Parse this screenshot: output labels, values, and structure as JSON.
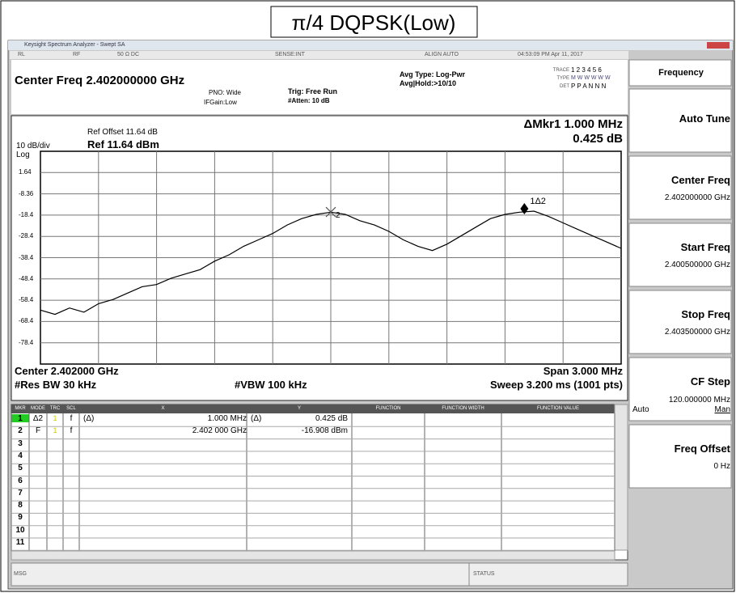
{
  "title": "π/4 DQPSK(Low)",
  "window": {
    "title": "Keysight Spectrum Analyzer - Swept SA"
  },
  "status_bar": [
    "RL",
    "RF",
    "50 Ω DC",
    "SENSE:INT",
    "ALIGN AUTO",
    "04:53:09 PM Apr 11, 2017"
  ],
  "header": {
    "center_freq": "Center Freq 2.402000000 GHz",
    "pno": "PNO: Wide",
    "ifgain": "IFGain:Low",
    "trig": "Trig: Free Run",
    "atten": "#Atten: 10 dB",
    "avg_type": "Avg Type: Log-Pwr",
    "avg_hold": "Avg|Hold:>10/10",
    "trace_label": "TRACE",
    "trace_nums": "1 2 3 4 5 6",
    "type_label": "TYPE",
    "type_vals": "M W W W W W",
    "det_label": "DET",
    "det_vals": "P P A N N N"
  },
  "plot": {
    "ref_offset": "Ref Offset 11.64 dB",
    "scale": "10 dB/div",
    "ref": "Ref 11.64 dBm",
    "log": "Log",
    "marker_readout": "ΔMkr1 1.000 MHz",
    "marker_value": "0.425 dB",
    "ylim": [
      -88.36,
      11.64
    ],
    "yticks": [
      1.64,
      -8.36,
      {
        "value": -18.36,
        "label": "-18.4"
      },
      {
        "value": -28.36,
        "label": "-28.4"
      },
      {
        "value": -38.36,
        "label": "-38.4"
      },
      {
        "value": -48.36,
        "label": "-48.4"
      },
      {
        "value": -58.36,
        "label": "-58.4"
      },
      {
        "value": -68.36,
        "label": "-68.4"
      },
      {
        "value": -78.36,
        "label": "-78.4"
      }
    ],
    "xlim": [
      2.4005,
      2.4035
    ],
    "x_divisions": 10,
    "grid": true,
    "trace_color": "#000000",
    "trace": [
      -63,
      -65,
      -62,
      -64,
      -60,
      -58,
      -55,
      -52,
      -51,
      -48,
      -46,
      -44,
      -40,
      -37,
      -33,
      -30,
      -27,
      -23,
      -20,
      -18,
      -17,
      -18,
      -21,
      -23,
      -26,
      -30,
      -33,
      -35,
      -32,
      -28,
      -24,
      -20,
      -18,
      -17,
      -16.5,
      -19,
      -22,
      -25,
      -28,
      -31,
      -34
    ],
    "markers": [
      {
        "label": "1Δ2",
        "x": 2.403,
        "y": -16.483
      },
      {
        "label": "2",
        "x": 2.402,
        "y": -16.908
      }
    ],
    "footer": {
      "center": "Center 2.402000 GHz",
      "span": "Span 3.000 MHz",
      "rbw": "#Res BW 30 kHz",
      "vbw": "#VBW 100 kHz",
      "sweep": "Sweep 3.200 ms (1001 pts)"
    }
  },
  "marker_table": {
    "headers": [
      "MKR",
      "MODE",
      "TRC",
      "SCL",
      "X",
      "Y",
      "FUNCTION",
      "FUNCTION WIDTH",
      "FUNCTION VALUE"
    ],
    "rows": [
      {
        "mkr": "1",
        "mode": "Δ2",
        "trc": "1",
        "scl": "f",
        "x_fn": "(Δ)",
        "x": "1.000 MHz",
        "y_fn": "(Δ)",
        "y": "0.425 dB"
      },
      {
        "mkr": "2",
        "mode": "F",
        "trc": "1",
        "scl": "f",
        "x": "2.402 000 GHz",
        "y": "-16.908 dBm"
      },
      {
        "mkr": "3"
      },
      {
        "mkr": "4"
      },
      {
        "mkr": "5"
      },
      {
        "mkr": "6"
      },
      {
        "mkr": "7"
      },
      {
        "mkr": "8"
      },
      {
        "mkr": "9"
      },
      {
        "mkr": "10"
      },
      {
        "mkr": "11"
      }
    ]
  },
  "softkeys": {
    "menu": "Frequency",
    "keys": [
      {
        "label": "Auto Tune"
      },
      {
        "label": "Center Freq",
        "value": "2.402000000 GHz"
      },
      {
        "label": "Start Freq",
        "value": "2.400500000 GHz"
      },
      {
        "label": "Stop Freq",
        "value": "2.403500000 GHz"
      },
      {
        "label": "CF Step",
        "value": "120.000000 MHz",
        "auto": "Auto",
        "man": "Man"
      },
      {
        "label": "Freq Offset",
        "value": "0 Hz"
      }
    ]
  },
  "message_bar": {
    "msg": "MSG",
    "status": "STATUS"
  }
}
